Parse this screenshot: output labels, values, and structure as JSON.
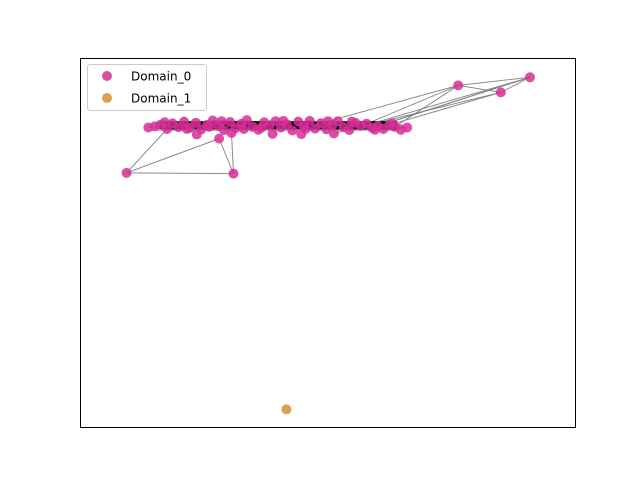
{
  "chart_data": {
    "type": "scatter",
    "title": "",
    "xlabel": "",
    "ylabel": "",
    "axes_ticks_visible": false,
    "grid": false,
    "xlim": [
      0,
      100
    ],
    "ylim": [
      0,
      100
    ],
    "legend": {
      "placement": "top-left",
      "entries": [
        {
          "label": "Domain_0",
          "color": "#d62f97"
        },
        {
          "label": "Domain_1",
          "color": "#d68f2f"
        }
      ]
    },
    "edge_color": "#808080",
    "series": [
      {
        "name": "Domain_0",
        "color": "#d62f97",
        "points": [
          {
            "x": 13.7,
            "y": 81.3
          },
          {
            "x": 15.0,
            "y": 81.6
          },
          {
            "x": 16.2,
            "y": 82.1
          },
          {
            "x": 17.5,
            "y": 80.9
          },
          {
            "x": 18.6,
            "y": 82.4
          },
          {
            "x": 19.8,
            "y": 81.4
          },
          {
            "x": 20.9,
            "y": 82.9
          },
          {
            "x": 22.1,
            "y": 81.2
          },
          {
            "x": 23.3,
            "y": 82.6
          },
          {
            "x": 24.4,
            "y": 80.8
          },
          {
            "x": 25.6,
            "y": 82.0
          },
          {
            "x": 26.7,
            "y": 83.2
          },
          {
            "x": 27.9,
            "y": 81.7
          },
          {
            "x": 29.0,
            "y": 80.6
          },
          {
            "x": 30.2,
            "y": 82.8
          },
          {
            "x": 31.3,
            "y": 81.1
          },
          {
            "x": 32.5,
            "y": 82.3
          },
          {
            "x": 33.6,
            "y": 83.3
          },
          {
            "x": 34.8,
            "y": 81.5
          },
          {
            "x": 35.9,
            "y": 80.7
          },
          {
            "x": 37.1,
            "y": 82.7
          },
          {
            "x": 38.2,
            "y": 81.9
          },
          {
            "x": 39.4,
            "y": 83.0
          },
          {
            "x": 40.5,
            "y": 81.3
          },
          {
            "x": 41.7,
            "y": 82.2
          },
          {
            "x": 42.8,
            "y": 80.5
          },
          {
            "x": 44.0,
            "y": 82.9
          },
          {
            "x": 45.1,
            "y": 81.6
          },
          {
            "x": 46.3,
            "y": 83.1
          },
          {
            "x": 47.4,
            "y": 81.0
          },
          {
            "x": 48.6,
            "y": 82.5
          },
          {
            "x": 49.7,
            "y": 80.8
          },
          {
            "x": 50.9,
            "y": 82.1
          },
          {
            "x": 52.0,
            "y": 83.0
          },
          {
            "x": 53.2,
            "y": 81.4
          },
          {
            "x": 54.3,
            "y": 80.6
          },
          {
            "x": 55.5,
            "y": 82.6
          },
          {
            "x": 56.6,
            "y": 81.8
          },
          {
            "x": 57.8,
            "y": 82.3
          },
          {
            "x": 58.9,
            "y": 81.2
          },
          {
            "x": 60.1,
            "y": 81.7
          },
          {
            "x": 61.2,
            "y": 80.9
          },
          {
            "x": 62.4,
            "y": 82.0
          },
          {
            "x": 63.5,
            "y": 81.5
          },
          {
            "x": 64.7,
            "y": 80.7
          },
          {
            "x": 66.0,
            "y": 81.3
          },
          {
            "x": 17.0,
            "y": 82.7
          },
          {
            "x": 21.5,
            "y": 80.9
          },
          {
            "x": 26.0,
            "y": 81.5
          },
          {
            "x": 28.5,
            "y": 83.0
          },
          {
            "x": 33.0,
            "y": 80.9
          },
          {
            "x": 36.5,
            "y": 81.2
          },
          {
            "x": 41.0,
            "y": 83.1
          },
          {
            "x": 45.5,
            "y": 80.9
          },
          {
            "x": 50.0,
            "y": 83.0
          },
          {
            "x": 54.8,
            "y": 82.9
          },
          {
            "x": 59.5,
            "y": 80.7
          },
          {
            "x": 63.0,
            "y": 82.4
          },
          {
            "x": 28.0,
            "y": 78.3
          },
          {
            "x": 23.5,
            "y": 79.4
          },
          {
            "x": 30.5,
            "y": 79.8
          },
          {
            "x": 38.8,
            "y": 79.6
          },
          {
            "x": 44.6,
            "y": 79.5
          },
          {
            "x": 51.2,
            "y": 79.7
          },
          {
            "x": 9.3,
            "y": 69.0
          },
          {
            "x": 30.9,
            "y": 68.8
          },
          {
            "x": 76.3,
            "y": 92.7
          },
          {
            "x": 84.9,
            "y": 90.8
          },
          {
            "x": 90.8,
            "y": 94.9
          }
        ]
      },
      {
        "name": "Domain_1",
        "color": "#d68f2f",
        "points": [
          {
            "x": 41.6,
            "y": 4.9
          }
        ]
      }
    ],
    "edges": [
      [
        13.7,
        81.3,
        66.0,
        81.3
      ],
      [
        15.0,
        81.6,
        64.7,
        80.7
      ],
      [
        16.2,
        82.1,
        63.5,
        81.5
      ],
      [
        17.5,
        80.9,
        62.4,
        82.0
      ],
      [
        18.6,
        82.4,
        61.2,
        80.9
      ],
      [
        19.8,
        81.4,
        60.1,
        81.7
      ],
      [
        20.9,
        82.9,
        58.9,
        81.2
      ],
      [
        22.1,
        81.2,
        57.8,
        82.3
      ],
      [
        23.3,
        82.6,
        56.6,
        81.8
      ],
      [
        24.4,
        80.8,
        55.5,
        82.6
      ],
      [
        25.6,
        82.0,
        54.3,
        80.6
      ],
      [
        26.7,
        83.2,
        53.2,
        81.4
      ],
      [
        27.9,
        81.7,
        52.0,
        83.0
      ],
      [
        29.0,
        80.6,
        50.9,
        82.1
      ],
      [
        30.2,
        82.8,
        49.7,
        80.8
      ],
      [
        31.3,
        81.1,
        48.6,
        82.5
      ],
      [
        17.0,
        82.7,
        47.4,
        81.0
      ],
      [
        21.5,
        80.9,
        46.3,
        83.1
      ],
      [
        26.0,
        81.5,
        45.1,
        81.6
      ],
      [
        28.5,
        83.0,
        44.0,
        82.9
      ],
      [
        14.5,
        82.0,
        65.0,
        82.0
      ],
      [
        14.5,
        81.0,
        65.0,
        81.0
      ],
      [
        15.5,
        82.6,
        64.0,
        82.6
      ],
      [
        15.5,
        80.6,
        64.0,
        80.6
      ],
      [
        9.3,
        69.0,
        30.9,
        68.8
      ],
      [
        9.3,
        69.0,
        28.0,
        78.3
      ],
      [
        30.9,
        68.8,
        28.0,
        78.3
      ],
      [
        30.9,
        68.8,
        30.5,
        79.8
      ],
      [
        9.3,
        69.0,
        17.5,
        80.9
      ],
      [
        76.3,
        92.7,
        84.9,
        90.8
      ],
      [
        76.3,
        92.7,
        90.8,
        94.9
      ],
      [
        84.9,
        90.8,
        90.8,
        94.9
      ],
      [
        90.8,
        94.9,
        58.9,
        81.2
      ],
      [
        90.8,
        94.9,
        54.3,
        80.6
      ],
      [
        84.9,
        90.8,
        62.4,
        82.0
      ],
      [
        84.9,
        90.8,
        51.2,
        79.7
      ],
      [
        76.3,
        92.7,
        63.5,
        81.5
      ],
      [
        76.3,
        92.7,
        57.8,
        82.3
      ],
      [
        76.3,
        92.7,
        48.6,
        82.5
      ],
      [
        90.8,
        94.9,
        60.1,
        81.7
      ]
    ]
  }
}
